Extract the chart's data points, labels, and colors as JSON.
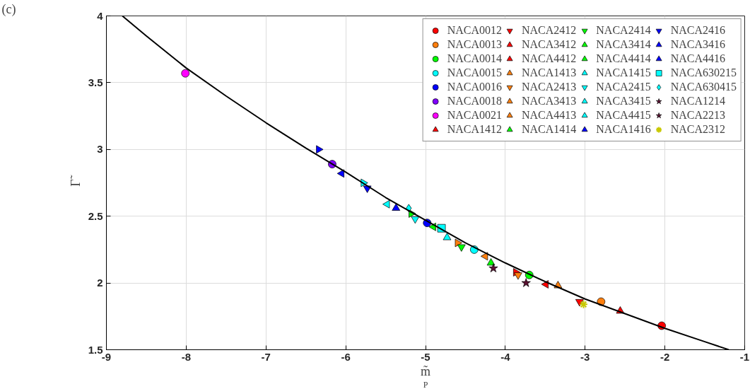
{
  "chart_data": {
    "type": "scatter",
    "xlabel": "m̃$_{P}$",
    "ylabel": "Γ̃",
    "annotations": [
      "(c)"
    ],
    "xlim": [
      -9,
      -1
    ],
    "ylim": [
      1.5,
      4
    ],
    "xticks": [
      -9,
      -8,
      -7,
      -6,
      -5,
      -4,
      -3,
      -2,
      -1
    ],
    "yticks": [
      1.5,
      2,
      2.5,
      3,
      3.5,
      4
    ],
    "grid": true,
    "legend": "top right",
    "series": [
      {
        "name": "NACA0012",
        "color": "#ff0000",
        "marker": "circle",
        "x": [
          -2.04
        ],
        "values": [
          1.68
        ]
      },
      {
        "name": "NACA0013",
        "color": "#ff7f0e",
        "marker": "circle",
        "x": [
          -2.8
        ],
        "values": [
          1.86
        ]
      },
      {
        "name": "NACA0014",
        "color": "#00ff00",
        "marker": "circle",
        "x": [
          -3.7
        ],
        "values": [
          2.06
        ]
      },
      {
        "name": "NACA0015",
        "color": "#00ffff",
        "marker": "circle",
        "x": [
          -4.39
        ],
        "values": [
          2.25
        ]
      },
      {
        "name": "NACA0016",
        "color": "#0000ff",
        "marker": "circle",
        "x": [
          -4.98
        ],
        "values": [
          2.45
        ]
      },
      {
        "name": "NACA0018",
        "color": "#8000ff",
        "marker": "circle",
        "x": [
          -6.17
        ],
        "values": [
          2.89
        ]
      },
      {
        "name": "NACA0021",
        "color": "#ff00ff",
        "marker": "circle",
        "x": [
          -8.01
        ],
        "values": [
          3.57
        ]
      },
      {
        "name": "NACA1412",
        "color": "#ff0000",
        "marker": "triangle",
        "x": [
          -2.56
        ],
        "values": [
          1.79
        ]
      },
      {
        "name": "NACA2412",
        "color": "#ff0000",
        "marker": "triangle_down",
        "x": [
          -3.07
        ],
        "values": [
          1.86
        ]
      },
      {
        "name": "NACA3412",
        "color": "#ff0000",
        "marker": "triangle_left",
        "x": [
          -3.49
        ],
        "values": [
          1.99
        ]
      },
      {
        "name": "NACA4412",
        "color": "#ff0000",
        "marker": "triangle_right",
        "x": [
          -3.87
        ],
        "values": [
          2.08
        ]
      },
      {
        "name": "NACA1413",
        "color": "#ff7f0e",
        "marker": "triangle",
        "x": [
          -3.34
        ],
        "values": [
          1.98
        ]
      },
      {
        "name": "NACA2413",
        "color": "#ff7f0e",
        "marker": "triangle_down",
        "x": [
          -3.84
        ],
        "values": [
          2.06
        ]
      },
      {
        "name": "NACA3413",
        "color": "#ff7f0e",
        "marker": "triangle_left",
        "x": [
          -4.25
        ],
        "values": [
          2.2
        ]
      },
      {
        "name": "NACA4413",
        "color": "#ff7f0e",
        "marker": "triangle_right",
        "x": [
          -4.6
        ],
        "values": [
          2.3
        ]
      },
      {
        "name": "NACA1414",
        "color": "#00ff00",
        "marker": "triangle",
        "x": [
          -4.18
        ],
        "values": [
          2.15
        ]
      },
      {
        "name": "NACA2414",
        "color": "#00ff00",
        "marker": "triangle_down",
        "x": [
          -4.55
        ],
        "values": [
          2.27
        ]
      },
      {
        "name": "NACA3414",
        "color": "#00ff00",
        "marker": "triangle_left",
        "x": [
          -4.9
        ],
        "values": [
          2.42
        ]
      },
      {
        "name": "NACA4414",
        "color": "#00ff00",
        "marker": "triangle_right",
        "x": [
          -5.18
        ],
        "values": [
          2.52
        ]
      },
      {
        "name": "NACA1415",
        "color": "#00ffff",
        "marker": "triangle",
        "x": [
          -4.73
        ],
        "values": [
          2.34
        ]
      },
      {
        "name": "NACA2415",
        "color": "#00ffff",
        "marker": "triangle_down",
        "x": [
          -5.13
        ],
        "values": [
          2.48
        ]
      },
      {
        "name": "NACA3415",
        "color": "#00ffff",
        "marker": "triangle_left",
        "x": [
          -5.48
        ],
        "values": [
          2.59
        ]
      },
      {
        "name": "NACA4415",
        "color": "#00ffff",
        "marker": "triangle_right",
        "x": [
          -5.78
        ],
        "values": [
          2.75
        ]
      },
      {
        "name": "NACA1416",
        "color": "#0000ff",
        "marker": "triangle",
        "x": [
          -5.37
        ],
        "values": [
          2.56
        ]
      },
      {
        "name": "NACA2416",
        "color": "#0000ff",
        "marker": "triangle_down",
        "x": [
          -5.73
        ],
        "values": [
          2.71
        ]
      },
      {
        "name": "NACA3416",
        "color": "#0000ff",
        "marker": "triangle_left",
        "x": [
          -6.05
        ],
        "values": [
          2.82
        ]
      },
      {
        "name": "NACA4416",
        "color": "#0000ff",
        "marker": "triangle_right",
        "x": [
          -6.34
        ],
        "values": [
          3.0
        ]
      },
      {
        "name": "NACA630215",
        "color": "#00ffff",
        "marker": "square",
        "x": [
          -4.8
        ],
        "values": [
          2.41
        ]
      },
      {
        "name": "NACA630415",
        "color": "#00ffff",
        "marker": "diamond",
        "x": [
          -5.21
        ],
        "values": [
          2.56
        ]
      },
      {
        "name": "NACA1214",
        "color": "#5a1030",
        "marker": "star",
        "x": [
          -4.15
        ],
        "values": [
          2.11
        ]
      },
      {
        "name": "NACA2213",
        "color": "#5a1030",
        "marker": "star",
        "x": [
          -3.74
        ],
        "values": [
          2.0
        ]
      },
      {
        "name": "NACA2312",
        "color": "#c8c800",
        "marker": "cross",
        "x": [
          -3.02
        ],
        "values": [
          1.84
        ]
      },
      {
        "type": "line",
        "color": "#000000",
        "line_style": "solid",
        "x": [
          -8.8,
          -8.5,
          -8,
          -7.5,
          -7,
          -6.5,
          -6,
          -5.5,
          -5,
          -4.5,
          -4,
          -3.5,
          -3,
          -2.5,
          -2,
          -1.5,
          -1.2
        ],
        "values": [
          4.0,
          3.85,
          3.61,
          3.4,
          3.2,
          3.01,
          2.83,
          2.64,
          2.47,
          2.3,
          2.15,
          2.01,
          1.88,
          1.77,
          1.66,
          1.56,
          1.5
        ]
      }
    ]
  }
}
